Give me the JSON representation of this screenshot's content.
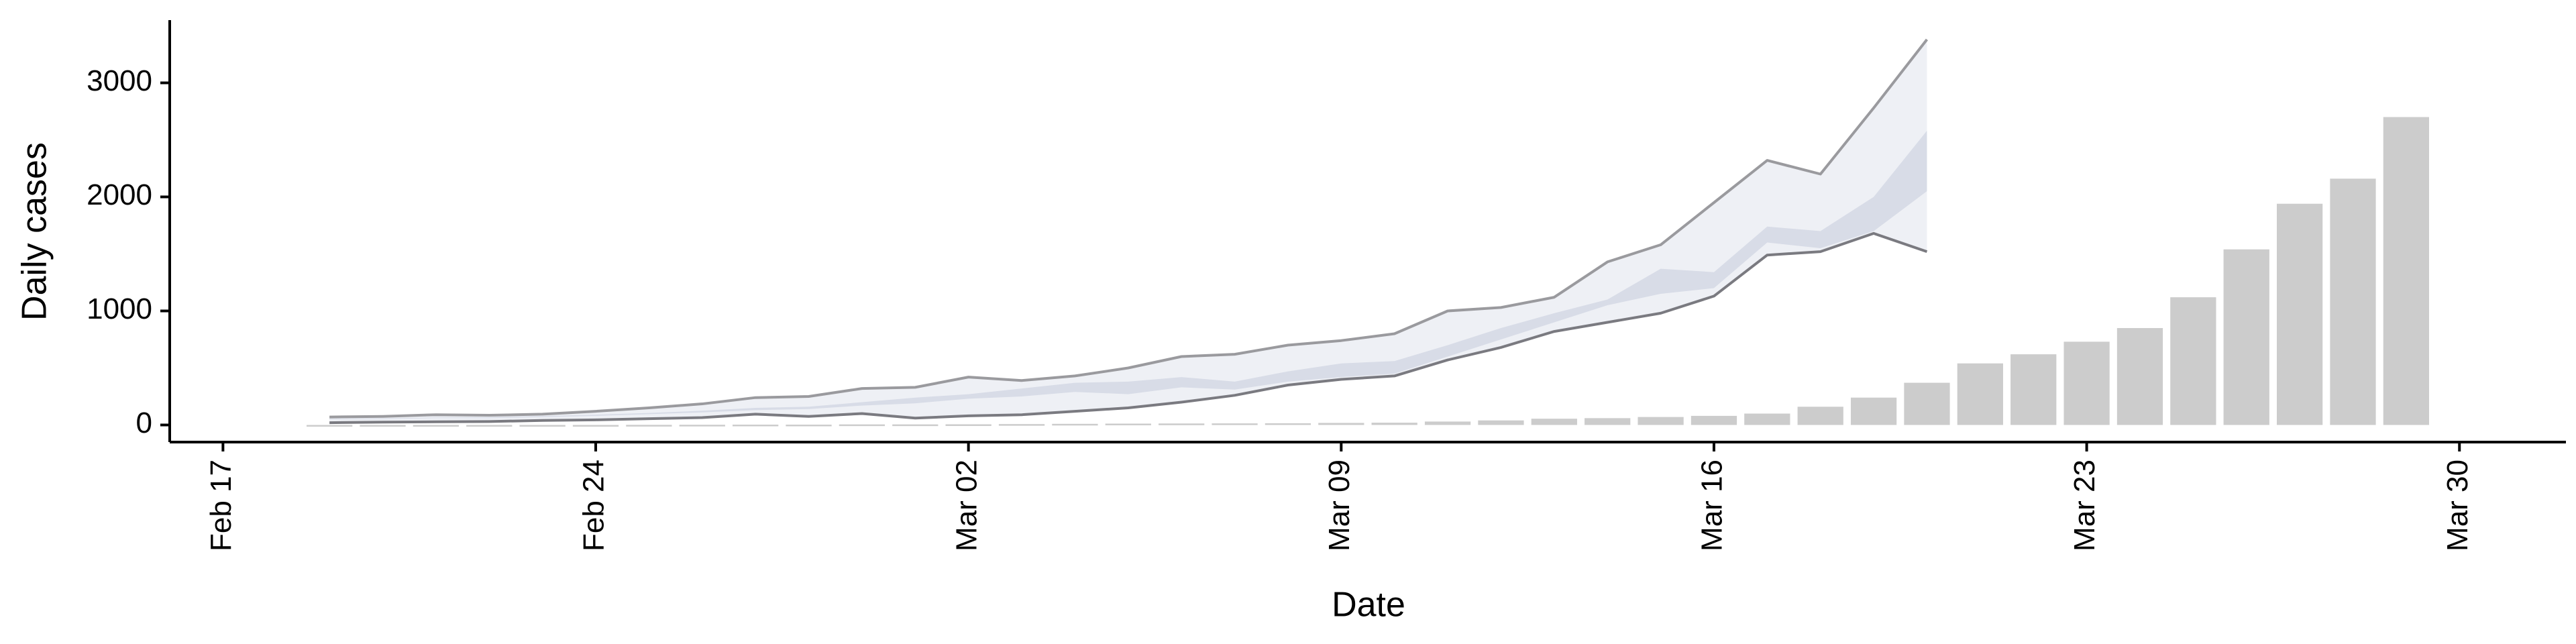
{
  "chart_data": {
    "type": "bar",
    "x_label": "Date",
    "y_label": "Daily cases",
    "xlim": [
      "Feb 16",
      "Apr 01"
    ],
    "xticks": [
      "Feb 17",
      "Feb 24",
      "Mar 02",
      "Mar 09",
      "Mar 16",
      "Mar 23",
      "Mar 30"
    ],
    "ylim": [
      -150,
      3550
    ],
    "yticks": [
      0,
      1000,
      2000,
      3000
    ],
    "grid": false,
    "series": [
      {
        "type": "bar",
        "color": "#cccccc",
        "x": [
          "Feb 19",
          "Feb 20",
          "Feb 21",
          "Feb 22",
          "Feb 23",
          "Feb 24",
          "Feb 25",
          "Feb 26",
          "Feb 27",
          "Feb 28",
          "Feb 29",
          "Mar 01",
          "Mar 02",
          "Mar 03",
          "Mar 04",
          "Mar 05",
          "Mar 06",
          "Mar 07",
          "Mar 08",
          "Mar 09",
          "Mar 10",
          "Mar 11",
          "Mar 12",
          "Mar 13",
          "Mar 14",
          "Mar 15",
          "Mar 16",
          "Mar 17",
          "Mar 18",
          "Mar 19",
          "Mar 20",
          "Mar 21",
          "Mar 22",
          "Mar 23",
          "Mar 24",
          "Mar 25",
          "Mar 26",
          "Mar 27",
          "Mar 28",
          "Mar 29"
        ],
        "values": [
          0,
          0,
          0,
          0,
          0,
          0,
          1,
          2,
          3,
          3,
          5,
          5,
          6,
          8,
          10,
          12,
          13,
          14,
          15,
          18,
          20,
          30,
          40,
          55,
          60,
          70,
          80,
          100,
          160,
          240,
          370,
          540,
          620,
          730,
          850,
          1120,
          1540,
          1940,
          2160,
          2700
        ]
      },
      {
        "type": "band",
        "color": "#eceef4",
        "x": [
          "Feb 19",
          "Feb 20",
          "Feb 21",
          "Feb 22",
          "Feb 23",
          "Feb 24",
          "Feb 25",
          "Feb 26",
          "Feb 27",
          "Feb 28",
          "Feb 29",
          "Mar 01",
          "Mar 02",
          "Mar 03",
          "Mar 04",
          "Mar 05",
          "Mar 06",
          "Mar 07",
          "Mar 08",
          "Mar 09",
          "Mar 10",
          "Mar 11",
          "Mar 12",
          "Mar 13",
          "Mar 14",
          "Mar 15",
          "Mar 16",
          "Mar 17",
          "Mar 18",
          "Mar 19",
          "Mar 20"
        ],
        "lower": [
          20,
          25,
          28,
          30,
          40,
          45,
          55,
          65,
          95,
          75,
          100,
          60,
          80,
          90,
          120,
          150,
          200,
          260,
          350,
          400,
          430,
          570,
          680,
          820,
          900,
          980,
          1130,
          1490,
          1520,
          1680,
          1520
        ],
        "upper": [
          70,
          75,
          90,
          85,
          95,
          120,
          150,
          185,
          240,
          250,
          320,
          330,
          420,
          390,
          430,
          500,
          600,
          620,
          700,
          740,
          800,
          1000,
          1030,
          1120,
          1430,
          1580,
          1950,
          2320,
          2200,
          2780,
          3380
        ]
      },
      {
        "type": "band",
        "color": "#d5d9e6",
        "x": [
          "Feb 19",
          "Feb 20",
          "Feb 21",
          "Feb 22",
          "Feb 23",
          "Feb 24",
          "Feb 25",
          "Feb 26",
          "Feb 27",
          "Feb 28",
          "Feb 29",
          "Mar 01",
          "Mar 02",
          "Mar 03",
          "Mar 04",
          "Mar 05",
          "Mar 06",
          "Mar 07",
          "Mar 08",
          "Mar 09",
          "Mar 10",
          "Mar 11",
          "Mar 12",
          "Mar 13",
          "Mar 14",
          "Mar 15",
          "Mar 16",
          "Mar 17",
          "Mar 18",
          "Mar 19",
          "Mar 20"
        ],
        "lower": [
          50,
          52,
          60,
          60,
          70,
          80,
          95,
          110,
          130,
          140,
          170,
          190,
          230,
          250,
          290,
          270,
          330,
          310,
          380,
          420,
          450,
          600,
          750,
          900,
          1050,
          1150,
          1200,
          1600,
          1550,
          1700,
          2050
        ],
        "upper": [
          55,
          58,
          65,
          68,
          78,
          90,
          105,
          125,
          150,
          160,
          200,
          240,
          270,
          320,
          370,
          380,
          420,
          380,
          470,
          540,
          560,
          700,
          850,
          980,
          1100,
          1370,
          1340,
          1740,
          1700,
          2000,
          2580
        ]
      },
      {
        "type": "line",
        "color": "#9a9a9e",
        "x": [
          "Feb 19",
          "Feb 20",
          "Feb 21",
          "Feb 22",
          "Feb 23",
          "Feb 24",
          "Feb 25",
          "Feb 26",
          "Feb 27",
          "Feb 28",
          "Feb 29",
          "Mar 01",
          "Mar 02",
          "Mar 03",
          "Mar 04",
          "Mar 05",
          "Mar 06",
          "Mar 07",
          "Mar 08",
          "Mar 09",
          "Mar 10",
          "Mar 11",
          "Mar 12",
          "Mar 13",
          "Mar 14",
          "Mar 15",
          "Mar 16",
          "Mar 17",
          "Mar 18",
          "Mar 19",
          "Mar 20"
        ],
        "values": [
          70,
          75,
          90,
          85,
          95,
          120,
          150,
          185,
          240,
          250,
          320,
          330,
          420,
          390,
          430,
          500,
          600,
          620,
          700,
          740,
          800,
          1000,
          1030,
          1120,
          1430,
          1580,
          1950,
          2320,
          2200,
          2780,
          3380
        ]
      },
      {
        "type": "line",
        "color": "#7a7a80",
        "x": [
          "Feb 19",
          "Feb 20",
          "Feb 21",
          "Feb 22",
          "Feb 23",
          "Feb 24",
          "Feb 25",
          "Feb 26",
          "Feb 27",
          "Feb 28",
          "Feb 29",
          "Mar 01",
          "Mar 02",
          "Mar 03",
          "Mar 04",
          "Mar 05",
          "Mar 06",
          "Mar 07",
          "Mar 08",
          "Mar 09",
          "Mar 10",
          "Mar 11",
          "Mar 12",
          "Mar 13",
          "Mar 14",
          "Mar 15",
          "Mar 16",
          "Mar 17",
          "Mar 18",
          "Mar 19",
          "Mar 20"
        ],
        "values": [
          20,
          25,
          28,
          30,
          40,
          45,
          55,
          65,
          95,
          75,
          100,
          60,
          80,
          90,
          120,
          150,
          200,
          260,
          350,
          400,
          430,
          570,
          680,
          820,
          900,
          980,
          1130,
          1490,
          1520,
          1680,
          1520
        ]
      }
    ]
  }
}
